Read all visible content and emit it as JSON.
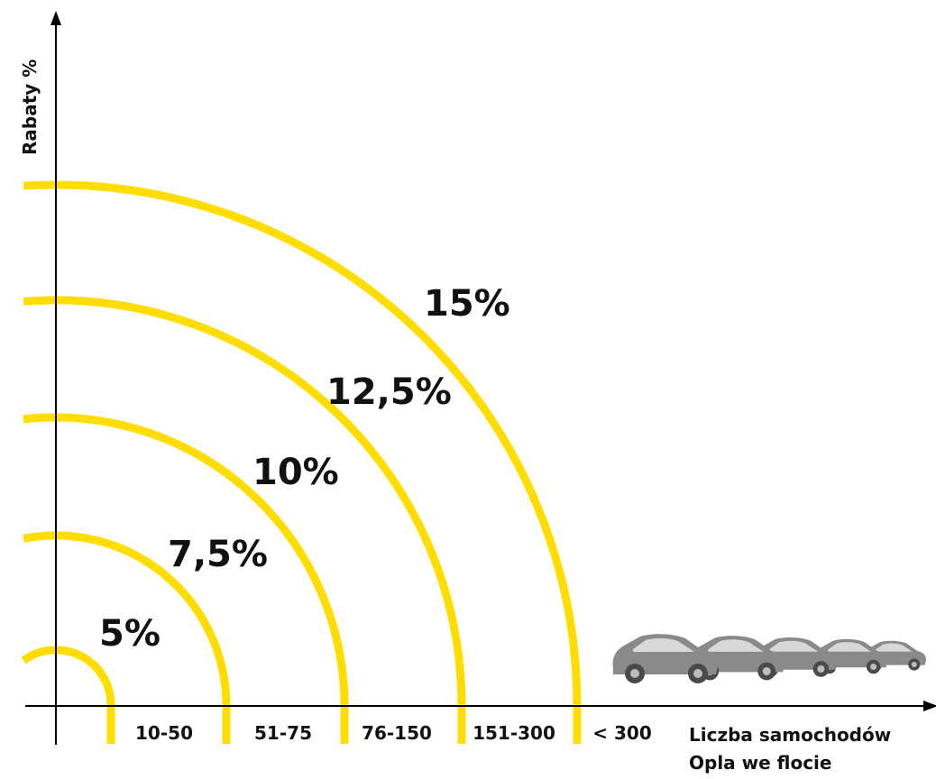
{
  "diagram": {
    "y_axis_title": "Rabaty %",
    "x_axis_title": [
      "Liczba samochodów",
      "Opla we flocie"
    ],
    "arc_color": "#FFDD00",
    "tiers": [
      {
        "discount": "5%",
        "fleet_range": "10-50"
      },
      {
        "discount": "7,5%",
        "fleet_range": "51-75"
      },
      {
        "discount": "10%",
        "fleet_range": "76-150"
      },
      {
        "discount": "12,5%",
        "fleet_range": "151-300"
      },
      {
        "discount": "15%",
        "fleet_range": "< 300"
      }
    ],
    "illustration": {
      "icon": "car-fleet-icon",
      "car_count": 5,
      "car_color": "#8a8a8a"
    }
  }
}
